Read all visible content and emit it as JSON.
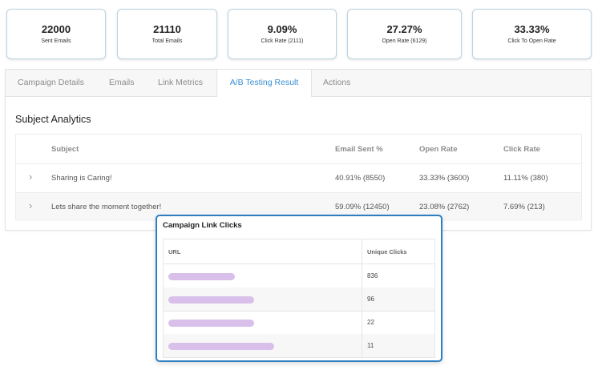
{
  "stats": [
    {
      "value": "22000",
      "label": "Sent Emails"
    },
    {
      "value": "21110",
      "label": "Total Emails"
    },
    {
      "value": "9.09%",
      "label": "Click Rate (2111)"
    },
    {
      "value": "27.27%",
      "label": "Open Rate (6129)"
    },
    {
      "value": "33.33%",
      "label": "Click To Open Rate"
    }
  ],
  "tabs": [
    {
      "label": "Campaign Details",
      "active": false
    },
    {
      "label": "Emails",
      "active": false
    },
    {
      "label": "Link Metrics",
      "active": false
    },
    {
      "label": "A/B Testing Result",
      "active": true
    },
    {
      "label": "Actions",
      "active": false
    }
  ],
  "subject_analytics": {
    "title": "Subject Analytics",
    "columns": [
      "Subject",
      "Email Sent %",
      "Open Rate",
      "Click Rate"
    ],
    "rows": [
      {
        "subject": "Sharing is Caring!",
        "sent": "40.91% (8550)",
        "open": "33.33% (3600)",
        "click": "11.11% (380)"
      },
      {
        "subject": "Lets share the moment together!",
        "sent": "59.09% (12450)",
        "open": "23.08% (2762)",
        "click": "7.69% (213)"
      }
    ]
  },
  "link_clicks": {
    "title": "Campaign Link Clicks",
    "columns": [
      "URL",
      "Unique Clicks"
    ],
    "rows": [
      {
        "clicks": "836"
      },
      {
        "clicks": "96"
      },
      {
        "clicks": "22"
      },
      {
        "clicks": "11"
      }
    ]
  },
  "colors": {
    "accent": "#2d7fc1",
    "active_tab": "#3b8fd6",
    "redacted_url": "#d9c0ea"
  }
}
